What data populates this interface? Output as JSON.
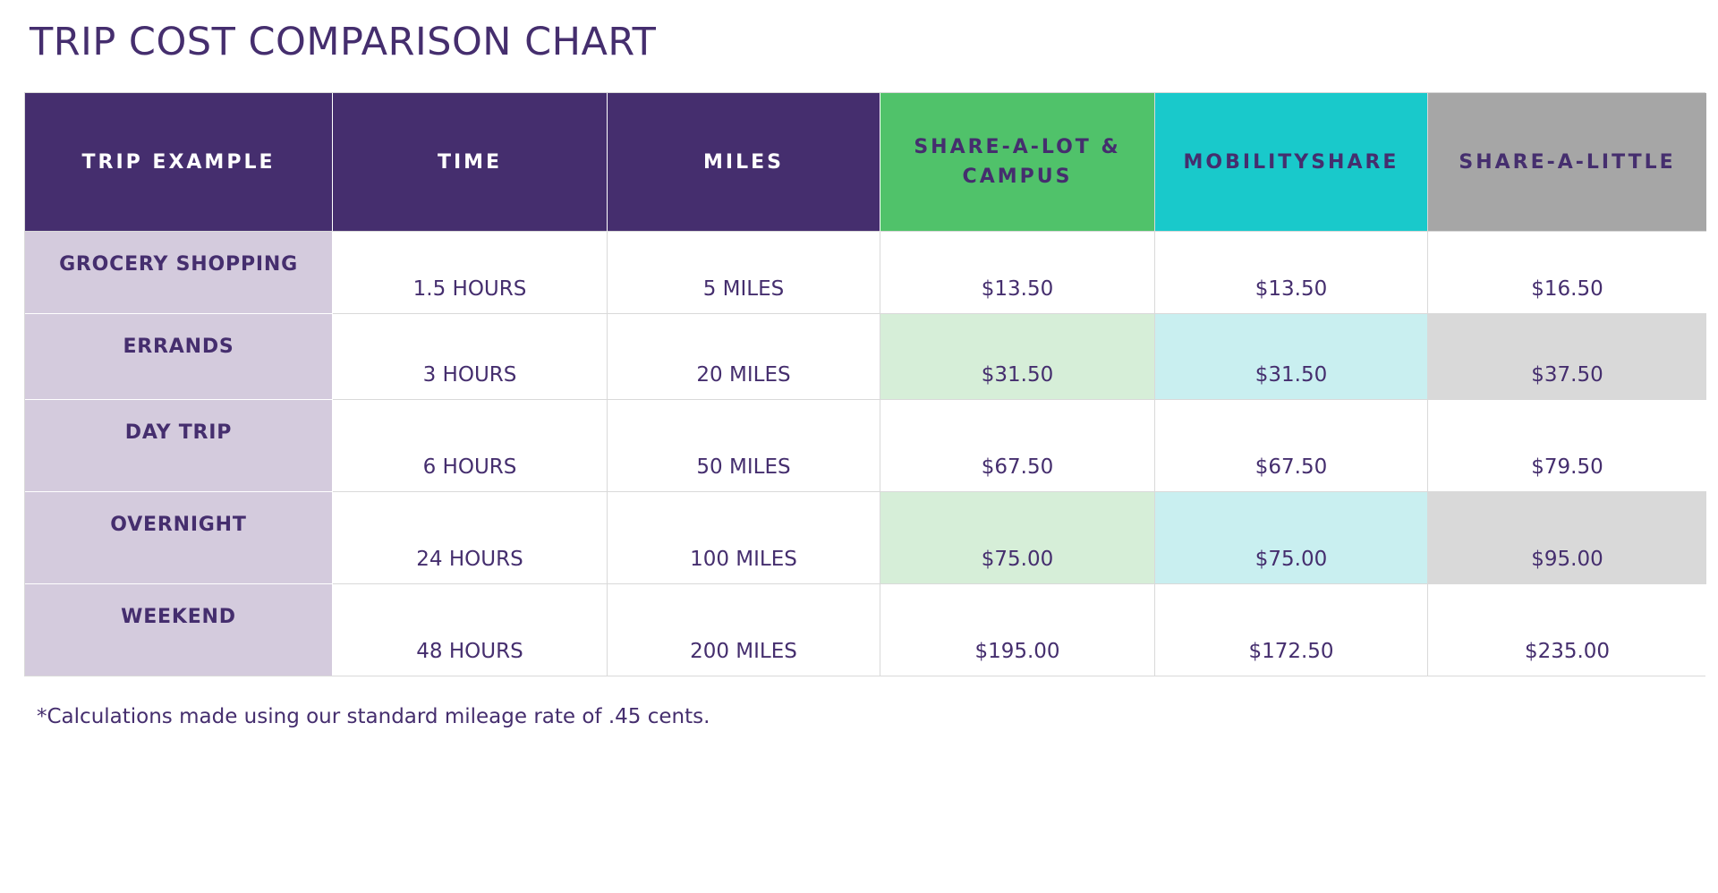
{
  "title": "TRIP COST COMPARISON CHART",
  "colors": {
    "header_purple": "#452e6e",
    "share_a_lot_green": "#50c26a",
    "mobilityshare_teal": "#19c9cb",
    "share_a_little_gray": "#a6a6a6",
    "row_label_lavender": "#d4cbdd",
    "text_purple": "#452e6e"
  },
  "table": {
    "headers": [
      "TRIP EXAMPLE",
      "TIME",
      "MILES",
      "SHARE-A-LOT & CAMPUS",
      "MOBILITYSHARE",
      "SHARE-A-LITTLE"
    ],
    "rows": [
      {
        "trip": "GROCERY SHOPPING",
        "time": "1.5 HOURS",
        "miles": "5 MILES",
        "share_a_lot": "$13.50",
        "mobilityshare": "$13.50",
        "share_a_little": "$16.50"
      },
      {
        "trip": "ERRANDS",
        "time": "3 HOURS",
        "miles": "20 MILES",
        "share_a_lot": "$31.50",
        "mobilityshare": "$31.50",
        "share_a_little": "$37.50"
      },
      {
        "trip": "DAY TRIP",
        "time": "6 HOURS",
        "miles": "50 MILES",
        "share_a_lot": "$67.50",
        "mobilityshare": "$67.50",
        "share_a_little": "$79.50"
      },
      {
        "trip": "OVERNIGHT",
        "time": "24 HOURS",
        "miles": "100 MILES",
        "share_a_lot": "$75.00",
        "mobilityshare": "$75.00",
        "share_a_little": "$95.00"
      },
      {
        "trip": "WEEKEND",
        "time": "48 HOURS",
        "miles": "200 MILES",
        "share_a_lot": "$195.00",
        "mobilityshare": "$172.50",
        "share_a_little": "$235.00"
      }
    ]
  },
  "footnote": "*Calculations made using our standard mileage rate of .45 cents."
}
